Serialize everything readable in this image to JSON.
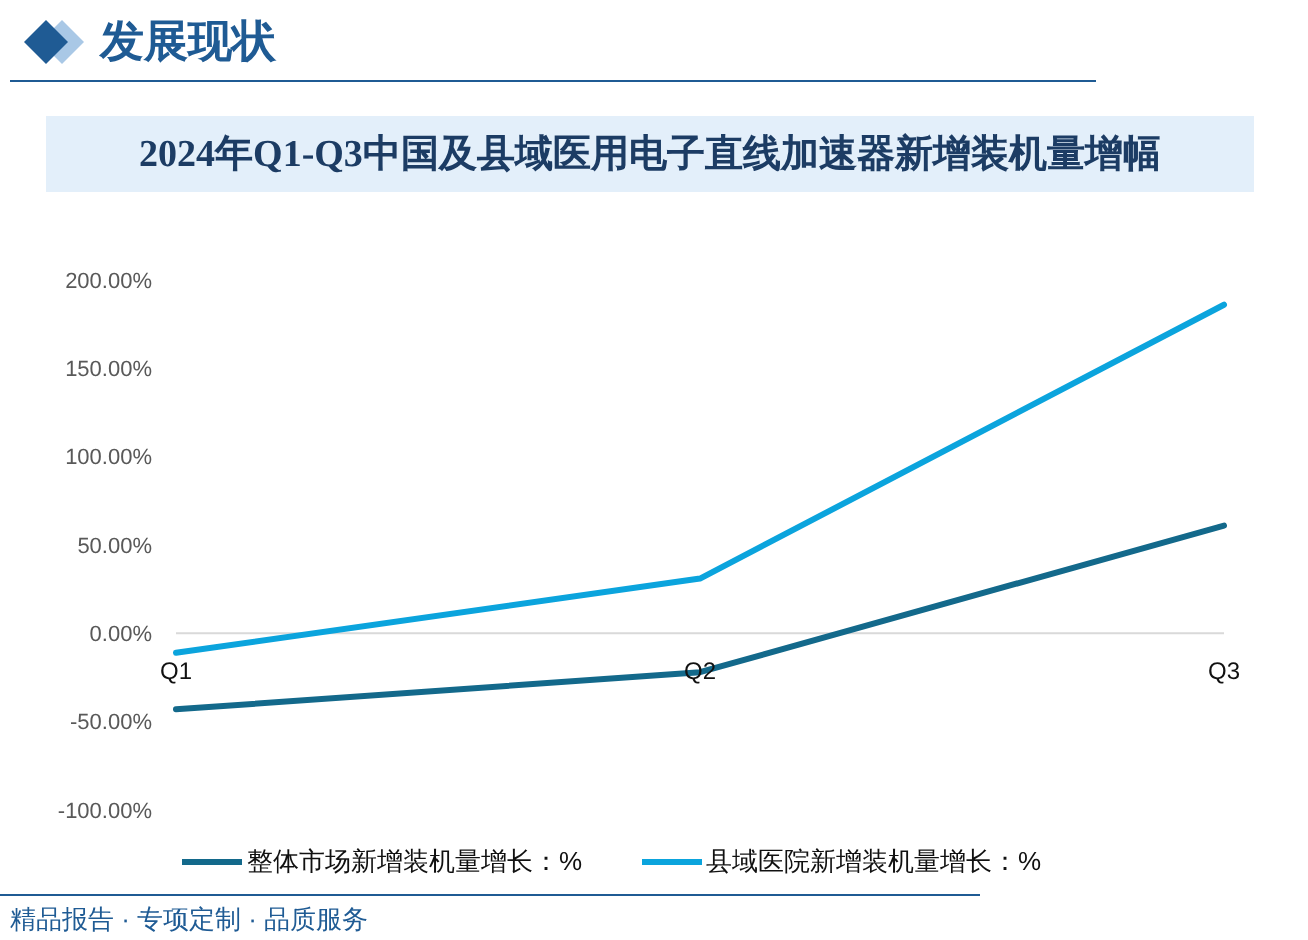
{
  "chart_data": {
    "type": "line",
    "title": "2024年Q1-Q3中国及县域医用电子直线加速器新增装机量增幅",
    "categories": [
      "Q1",
      "Q2",
      "Q3"
    ],
    "series": [
      {
        "name": "整体市场新增装机量增长：%",
        "color": "#13698b",
        "values": [
          -43,
          -22,
          61
        ]
      },
      {
        "name": "县域医院新增装机量增长：%",
        "color": "#0ba4dd",
        "values": [
          -11,
          31,
          186
        ]
      }
    ],
    "ylim": [
      -100,
      200
    ],
    "yticks": [
      {
        "value": -100,
        "label": "-100.00%"
      },
      {
        "value": -50,
        "label": "-50.00%"
      },
      {
        "value": 0,
        "label": "0.00%"
      },
      {
        "value": 50,
        "label": "50.00%"
      },
      {
        "value": 100,
        "label": "100.00%"
      },
      {
        "value": 150,
        "label": "150.00%"
      },
      {
        "value": 200,
        "label": "200.00%"
      }
    ],
    "legend": "bottom",
    "marker": "none",
    "line_style": "solid",
    "annotations": [
      "发展现状",
      "精品报告 · 专项定制 · 品质服务"
    ]
  }
}
